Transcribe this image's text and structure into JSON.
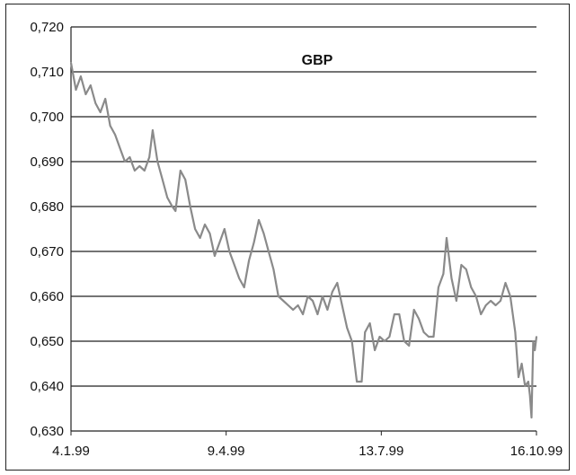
{
  "chart_data": {
    "type": "line",
    "title": "GBP",
    "xlabel": "",
    "ylabel": "",
    "ylim": [
      0.63,
      0.72
    ],
    "yticks": [
      0.72,
      0.71,
      0.7,
      0.69,
      0.68,
      0.67,
      0.66,
      0.65,
      0.64,
      0.63
    ],
    "ytick_labels": [
      "0,720",
      "0,710",
      "0,700",
      "0,690",
      "0,680",
      "0,670",
      "0,660",
      "0,650",
      "0,640",
      "0,630"
    ],
    "xticks": [
      "1999-01-04",
      "1999-04-09",
      "1999-07-13",
      "1999-10-16"
    ],
    "xtick_labels": [
      "4.1.99",
      "9.4.99",
      "13.7.99",
      "16.10.99"
    ],
    "xlim": [
      "1999-01-04",
      "1999-10-16"
    ],
    "grid": true,
    "series": [
      {
        "color": "#8a8a8a",
        "points": [
          [
            "1999-01-04",
            0.712
          ],
          [
            "1999-01-07",
            0.706
          ],
          [
            "1999-01-10",
            0.709
          ],
          [
            "1999-01-13",
            0.705
          ],
          [
            "1999-01-16",
            0.707
          ],
          [
            "1999-01-19",
            0.703
          ],
          [
            "1999-01-22",
            0.701
          ],
          [
            "1999-01-25",
            0.704
          ],
          [
            "1999-01-28",
            0.698
          ],
          [
            "1999-01-31",
            0.696
          ],
          [
            "1999-02-03",
            0.693
          ],
          [
            "1999-02-06",
            0.69
          ],
          [
            "1999-02-09",
            0.691
          ],
          [
            "1999-02-12",
            0.688
          ],
          [
            "1999-02-15",
            0.689
          ],
          [
            "1999-02-18",
            0.688
          ],
          [
            "1999-02-21",
            0.691
          ],
          [
            "1999-02-23",
            0.697
          ],
          [
            "1999-02-26",
            0.69
          ],
          [
            "1999-03-01",
            0.686
          ],
          [
            "1999-03-04",
            0.682
          ],
          [
            "1999-03-07",
            0.68
          ],
          [
            "1999-03-09",
            0.679
          ],
          [
            "1999-03-12",
            0.688
          ],
          [
            "1999-03-15",
            0.686
          ],
          [
            "1999-03-18",
            0.68
          ],
          [
            "1999-03-21",
            0.675
          ],
          [
            "1999-03-24",
            0.673
          ],
          [
            "1999-03-27",
            0.676
          ],
          [
            "1999-03-30",
            0.674
          ],
          [
            "1999-04-02",
            0.669
          ],
          [
            "1999-04-05",
            0.672
          ],
          [
            "1999-04-08",
            0.675
          ],
          [
            "1999-04-11",
            0.67
          ],
          [
            "1999-04-14",
            0.667
          ],
          [
            "1999-04-17",
            0.664
          ],
          [
            "1999-04-20",
            0.662
          ],
          [
            "1999-04-23",
            0.668
          ],
          [
            "1999-04-26",
            0.672
          ],
          [
            "1999-04-29",
            0.677
          ],
          [
            "1999-05-02",
            0.674
          ],
          [
            "1999-05-05",
            0.67
          ],
          [
            "1999-05-08",
            0.666
          ],
          [
            "1999-05-11",
            0.66
          ],
          [
            "1999-05-14",
            0.659
          ],
          [
            "1999-05-17",
            0.658
          ],
          [
            "1999-05-20",
            0.657
          ],
          [
            "1999-05-23",
            0.658
          ],
          [
            "1999-05-26",
            0.656
          ],
          [
            "1999-05-29",
            0.66
          ],
          [
            "1999-06-01",
            0.659
          ],
          [
            "1999-06-04",
            0.656
          ],
          [
            "1999-06-07",
            0.66
          ],
          [
            "1999-06-10",
            0.657
          ],
          [
            "1999-06-13",
            0.661
          ],
          [
            "1999-06-16",
            0.663
          ],
          [
            "1999-06-19",
            0.658
          ],
          [
            "1999-06-22",
            0.653
          ],
          [
            "1999-06-25",
            0.65
          ],
          [
            "1999-06-28",
            0.641
          ],
          [
            "1999-07-01",
            0.641
          ],
          [
            "1999-07-03",
            0.652
          ],
          [
            "1999-07-06",
            0.654
          ],
          [
            "1999-07-09",
            0.648
          ],
          [
            "1999-07-12",
            0.651
          ],
          [
            "1999-07-15",
            0.65
          ],
          [
            "1999-07-18",
            0.651
          ],
          [
            "1999-07-21",
            0.656
          ],
          [
            "1999-07-24",
            0.656
          ],
          [
            "1999-07-27",
            0.65
          ],
          [
            "1999-07-30",
            0.649
          ],
          [
            "1999-08-02",
            0.657
          ],
          [
            "1999-08-05",
            0.655
          ],
          [
            "1999-08-08",
            0.652
          ],
          [
            "1999-08-11",
            0.651
          ],
          [
            "1999-08-14",
            0.651
          ],
          [
            "1999-08-17",
            0.662
          ],
          [
            "1999-08-20",
            0.665
          ],
          [
            "1999-08-22",
            0.673
          ],
          [
            "1999-08-25",
            0.664
          ],
          [
            "1999-08-28",
            0.659
          ],
          [
            "1999-08-31",
            0.667
          ],
          [
            "1999-09-03",
            0.666
          ],
          [
            "1999-09-06",
            0.662
          ],
          [
            "1999-09-09",
            0.66
          ],
          [
            "1999-09-12",
            0.656
          ],
          [
            "1999-09-15",
            0.658
          ],
          [
            "1999-09-18",
            0.659
          ],
          [
            "1999-09-21",
            0.658
          ],
          [
            "1999-09-24",
            0.659
          ],
          [
            "1999-09-27",
            0.663
          ],
          [
            "1999-09-30",
            0.66
          ],
          [
            "1999-10-03",
            0.652
          ],
          [
            "1999-10-05",
            0.642
          ],
          [
            "1999-10-07",
            0.645
          ],
          [
            "1999-10-09",
            0.64
          ],
          [
            "1999-10-11",
            0.641
          ],
          [
            "1999-10-12",
            0.638
          ],
          [
            "1999-10-13",
            0.633
          ],
          [
            "1999-10-14",
            0.65
          ],
          [
            "1999-10-15",
            0.648
          ],
          [
            "1999-10-16",
            0.651
          ]
        ]
      }
    ]
  }
}
